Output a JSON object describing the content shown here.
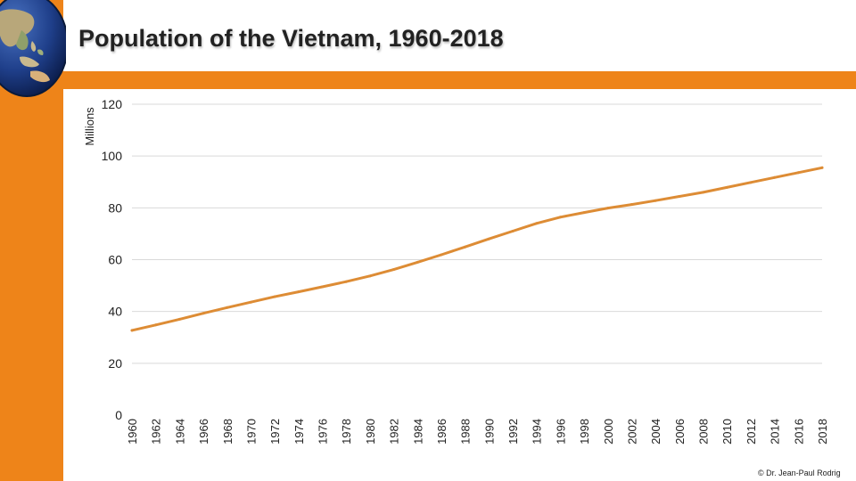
{
  "title": "Population of the Vietnam, 1960-2018",
  "credit": "© Dr. Jean-Paul Rodrig",
  "colors": {
    "accent": "#ee8419",
    "line": "#dd8c35",
    "grid": "#d9d9d9"
  },
  "decor": {
    "globe_icon": "globe-asia-icon"
  },
  "chart_data": {
    "type": "line",
    "title": "Population of the Vietnam, 1960-2018",
    "xlabel": "",
    "ylabel": "Millions",
    "ylim": [
      0,
      120
    ],
    "yticks": [
      0,
      20,
      40,
      60,
      80,
      100,
      120
    ],
    "grid": true,
    "x": [
      1960,
      1962,
      1964,
      1966,
      1968,
      1970,
      1972,
      1974,
      1976,
      1978,
      1980,
      1982,
      1984,
      1986,
      1988,
      1990,
      1992,
      1994,
      1996,
      1998,
      2000,
      2002,
      2004,
      2006,
      2008,
      2010,
      2012,
      2014,
      2016,
      2018
    ],
    "series": [
      {
        "values": [
          32.7,
          34.8,
          37.0,
          39.3,
          41.5,
          43.6,
          45.7,
          47.6,
          49.5,
          51.5,
          53.7,
          56.2,
          59.0,
          61.9,
          64.9,
          68.0,
          71.0,
          74.0,
          76.4,
          78.2,
          79.9,
          81.3,
          82.8,
          84.4,
          86.0,
          87.9,
          89.8,
          91.7,
          93.6,
          95.5
        ]
      }
    ]
  }
}
